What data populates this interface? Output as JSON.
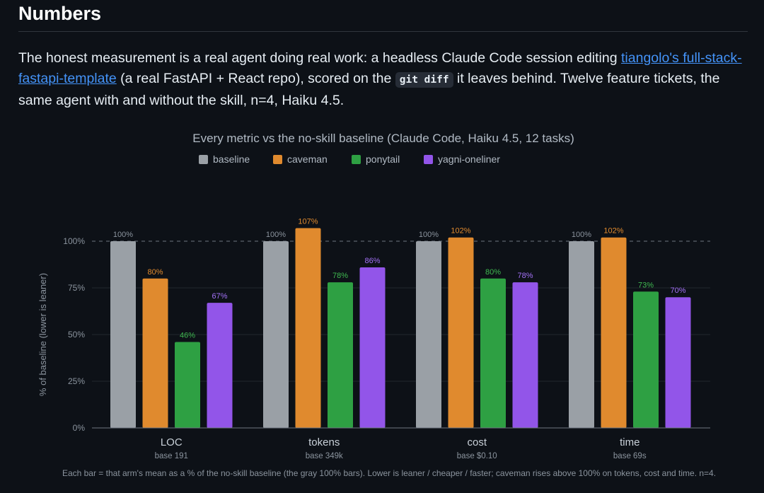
{
  "section": {
    "title": "Numbers",
    "intro": {
      "p1": "The honest measurement is a real agent doing real work: a headless Claude Code session editing ",
      "link": "tiangolo's full-stack-fastapi-template",
      "p2": " (a real FastAPI + React repo), scored on the ",
      "code": "git diff",
      "p3": " it leaves behind. Twelve feature tickets, the same agent with and without the skill, n=4, Haiku 4.5."
    },
    "caption": "Each bar = that arm's mean as a % of the no-skill baseline (the gray 100% bars). Lower is leaner / cheaper / faster; caveman rises above 100% on tokens, cost and time. n=4."
  },
  "chart_data": {
    "type": "bar",
    "title": "Every metric vs the no-skill baseline (Claude Code, Haiku 4.5, 12 tasks)",
    "xlabel": "",
    "ylabel": "% of baseline (lower is leaner)",
    "categories": [
      "LOC",
      "tokens",
      "cost",
      "time"
    ],
    "category_subtitles": [
      "base 191",
      "base 349k",
      "base $0.10",
      "base 69s"
    ],
    "ylim": [
      0,
      115
    ],
    "yticks": [
      0,
      25,
      50,
      75,
      100
    ],
    "ytick_labels": [
      "0%",
      "25%",
      "50%",
      "75%",
      "100%"
    ],
    "reference_line": 100,
    "grid": true,
    "legend_position": "top-left",
    "series": [
      {
        "name": "baseline",
        "color": "#9aa0a6",
        "values": [
          100,
          100,
          100,
          100
        ],
        "labels": [
          "100%",
          "100%",
          "100%",
          "100%"
        ]
      },
      {
        "name": "caveman",
        "color": "#e08a2e",
        "values": [
          80,
          107,
          102,
          102
        ],
        "labels": [
          "80%",
          "107%",
          "102%",
          "102%"
        ]
      },
      {
        "name": "ponytail",
        "color": "#2ea043",
        "values": [
          46,
          78,
          80,
          73
        ],
        "labels": [
          "46%",
          "78%",
          "80%",
          "73%"
        ]
      },
      {
        "name": "yagni-oneliner",
        "color": "#9255e9",
        "values": [
          67,
          86,
          78,
          70
        ],
        "labels": [
          "67%",
          "86%",
          "78%",
          "70%"
        ]
      }
    ],
    "label_colors": [
      "#8b949e",
      "#e08a2e",
      "#3fb950",
      "#a371f7"
    ]
  }
}
